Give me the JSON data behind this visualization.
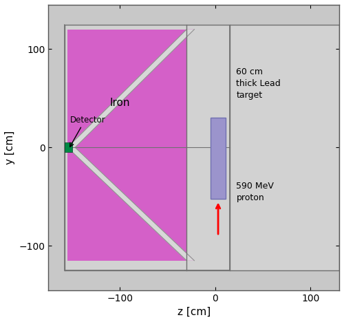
{
  "xlim": [
    -175,
    130
  ],
  "ylim": [
    -145,
    145
  ],
  "xlabel": "z [cm]",
  "ylabel": "y [cm]",
  "bg_color": "#c8c8c8",
  "iron_color": "#d460c8",
  "lead_color": "#9b94cc",
  "gap_color": "#d8d8d8",
  "detector_color": "#008844",
  "figsize": [
    5.0,
    4.68
  ],
  "dpi": 100,
  "xticks": [
    -100,
    0,
    100
  ],
  "yticks": [
    -100,
    0,
    100
  ]
}
